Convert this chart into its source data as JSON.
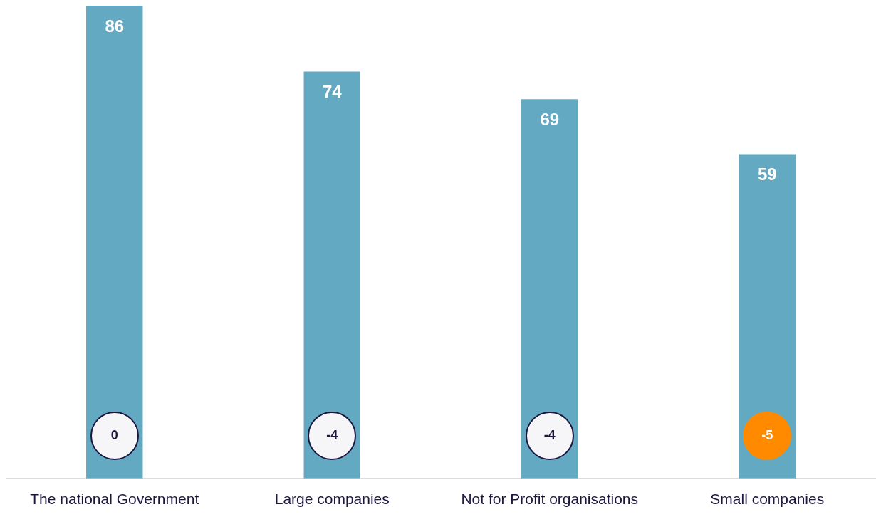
{
  "chart_data": {
    "type": "bar",
    "categories": [
      "The national Government",
      "Large companies",
      "Not for Profit organisations",
      "Small companies"
    ],
    "values": [
      86,
      74,
      69,
      59
    ],
    "color": "#63a9c2",
    "data_labels": true,
    "grid": false,
    "legend": false,
    "annotations": [
      "0",
      "-4",
      "-4",
      "-5"
    ]
  }
}
